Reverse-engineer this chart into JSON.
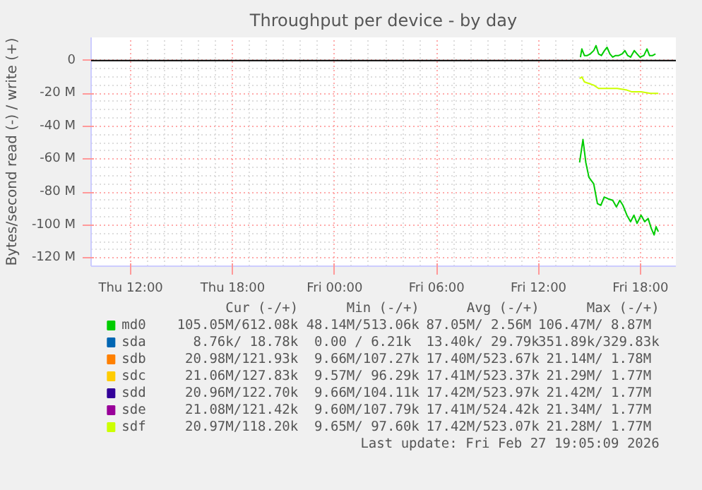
{
  "chart_data": {
    "type": "line",
    "title": "Throughput per device - by day",
    "ylabel": "Bytes/second read (-) / write (+)",
    "xlim": [
      "2026-02-26T09:40",
      "2026-02-27T20:05"
    ],
    "xticks": [
      {
        "value": "2026-02-26T12:00",
        "label": "Thu 12:00"
      },
      {
        "value": "2026-02-26T18:00",
        "label": "Thu 18:00"
      },
      {
        "value": "2026-02-27T00:00",
        "label": "Fri 00:00"
      },
      {
        "value": "2026-02-27T06:00",
        "label": "Fri 06:00"
      },
      {
        "value": "2026-02-27T12:00",
        "label": "Fri 12:00"
      },
      {
        "value": "2026-02-27T18:00",
        "label": "Fri 18:00"
      }
    ],
    "ylim": [
      -125,
      14
    ],
    "yticks": [
      {
        "value": -120,
        "label": "-120 M"
      },
      {
        "value": -100,
        "label": "-100 M"
      },
      {
        "value": -80,
        "label": "-80 M"
      },
      {
        "value": -60,
        "label": "-60 M"
      },
      {
        "value": -40,
        "label": "-40 M"
      },
      {
        "value": -20,
        "label": "-20 M"
      },
      0
    ],
    "grid": true,
    "legend": "bottom",
    "marker": "none",
    "line_style": "solid",
    "ref_lines": [
      {
        "axis": "y",
        "value": 0,
        "color": "#000000"
      }
    ],
    "series": [
      {
        "name": "md0",
        "color": "#00cc00",
        "x": [
          "2026-02-27T14:25",
          "2026-02-27T14:37",
          "2026-02-27T14:47",
          "2026-02-27T14:58",
          "2026-02-27T15:15",
          "2026-02-27T15:28",
          "2026-02-27T15:40",
          "2026-02-27T15:52",
          "2026-02-27T16:05",
          "2026-02-27T16:22",
          "2026-02-27T16:35",
          "2026-02-27T16:47",
          "2026-02-27T16:58",
          "2026-02-27T17:12",
          "2026-02-27T17:25",
          "2026-02-27T17:37",
          "2026-02-27T17:48",
          "2026-02-27T18:02",
          "2026-02-27T18:15",
          "2026-02-27T18:27",
          "2026-02-27T18:38",
          "2026-02-27T18:48",
          "2026-02-27T18:55",
          "2026-02-27T19:03"
        ],
        "values": [
          -62,
          -48,
          -62,
          -71,
          -75,
          -87,
          -88,
          -83,
          -84,
          -85,
          -89,
          -85,
          -88,
          -94,
          -98,
          -94,
          -99,
          -94,
          -98,
          -96,
          -102,
          -106,
          -101,
          -104
        ]
      },
      {
        "color": "#00cc00",
        "x": [
          "2026-02-27T14:28",
          "2026-02-27T14:33",
          "2026-02-27T14:42",
          "2026-02-27T14:52",
          "2026-02-27T15:03",
          "2026-02-27T15:15",
          "2026-02-27T15:23",
          "2026-02-27T15:32",
          "2026-02-27T15:42",
          "2026-02-27T15:53",
          "2026-02-27T16:02",
          "2026-02-27T16:12",
          "2026-02-27T16:22",
          "2026-02-27T16:32",
          "2026-02-27T16:43",
          "2026-02-27T16:55",
          "2026-02-27T17:05",
          "2026-02-27T17:15",
          "2026-02-27T17:25",
          "2026-02-27T17:38",
          "2026-02-27T17:48",
          "2026-02-27T17:58",
          "2026-02-27T18:12",
          "2026-02-27T18:23",
          "2026-02-27T18:32",
          "2026-02-27T18:43",
          "2026-02-27T18:53"
        ],
        "values": [
          2,
          7,
          3,
          3,
          4,
          6,
          9,
          4,
          3,
          6,
          8,
          4,
          2,
          3,
          3,
          4,
          6,
          3,
          2,
          6,
          4,
          2,
          3,
          7,
          3,
          3,
          4
        ]
      },
      {
        "name": "sda",
        "color": "#0066b3"
      },
      {
        "name": "sdb",
        "color": "#ff8000"
      },
      {
        "name": "sdc",
        "color": "#ffcc00"
      },
      {
        "name": "sdd",
        "color": "#330099"
      },
      {
        "name": "sde",
        "color": "#990099"
      },
      {
        "name": "sdf",
        "color": "#ccff00",
        "x": [
          "2026-02-27T14:25",
          "2026-02-27T14:33",
          "2026-02-27T14:42",
          "2026-02-27T14:58",
          "2026-02-27T15:15",
          "2026-02-27T15:32",
          "2026-02-27T15:48",
          "2026-02-27T16:05",
          "2026-02-27T16:38",
          "2026-02-27T17:12",
          "2026-02-27T17:28",
          "2026-02-27T18:02",
          "2026-02-27T18:35",
          "2026-02-27T19:03"
        ],
        "values": [
          -11,
          -10,
          -13,
          -14,
          -15,
          -17,
          -17,
          -17,
          -17,
          -18,
          -19,
          -19,
          -20,
          -20
        ]
      }
    ],
    "annotations": [
      "Cur (-/+)",
      "Min (-/+)",
      "Avg (-/+)",
      "Max (-/+)",
      "105.05M/612.08k",
      "48.14M/513.06k",
      "87.05M/  2.56M",
      "106.47M/  8.87M",
      "8.76k/ 18.78k",
      "0.00 /  6.21k",
      "13.40k/ 29.79k",
      "351.89k/329.83k",
      "20.98M/121.93k",
      "9.66M/107.27k",
      "17.40M/523.67k",
      "21.14M/  1.78M",
      "21.06M/127.83k",
      "9.57M/ 96.29k",
      "17.41M/523.37k",
      "21.29M/  1.77M",
      "20.96M/122.70k",
      "9.66M/104.11k",
      "17.42M/523.97k",
      "21.42M/  1.77M",
      "21.08M/121.42k",
      "9.60M/107.79k",
      "17.41M/524.42k",
      "21.34M/  1.77M",
      "20.97M/118.20k",
      "9.65M/ 97.60k",
      "17.42M/523.07k",
      "21.28M/  1.77M",
      "Last update: Fri Feb 27 19:05:09 2026"
    ]
  }
}
